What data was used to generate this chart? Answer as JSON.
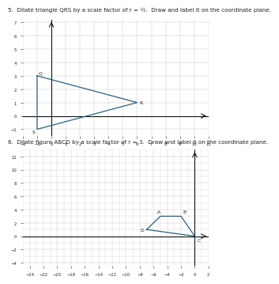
{
  "problem5_text": "5.  Dilate triangle QRS by a scale factor of r = ½.  Draw and label it on the coordinate plane.",
  "problem6_text": "6.  Dilate figure ABCD by a scale factor of r = 3.  Draw and label it on the coordinate plane.",
  "p5_xlim": [
    -2,
    11
  ],
  "p5_ylim": [
    -1.5,
    7.2
  ],
  "p5_triangle_Q": [
    -1,
    3
  ],
  "p5_triangle_R": [
    6,
    1
  ],
  "p5_triangle_S": [
    -1,
    -1
  ],
  "p5_color": "#2e5f7a",
  "p6_xlim": [
    -25,
    2
  ],
  "p6_ylim": [
    -4.5,
    13
  ],
  "p6_A": [
    -5,
    3
  ],
  "p6_B": [
    -2,
    3
  ],
  "p6_D": [
    -7,
    1
  ],
  "p6_C": [
    0,
    0
  ],
  "p6_color": "#2e5f7a",
  "bg_color": "#ffffff",
  "grid_color": "#cccccc",
  "axis_color": "#000000",
  "text_color": "#222222",
  "label_fontsize": 3.8,
  "text_fontsize": 5.2
}
